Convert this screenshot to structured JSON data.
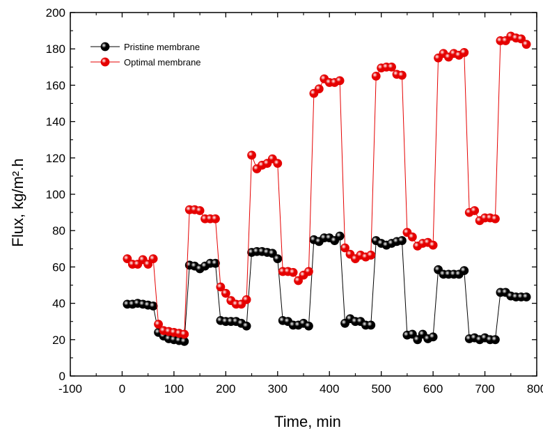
{
  "chart_data": {
    "type": "line",
    "xlabel": "Time, min",
    "ylabel": "Flux, kg/m².h",
    "xlim": [
      -100,
      800
    ],
    "ylim": [
      0,
      200
    ],
    "xticks": [
      -100,
      0,
      100,
      200,
      300,
      400,
      500,
      600,
      700,
      800
    ],
    "yticks": [
      0,
      20,
      40,
      60,
      80,
      100,
      120,
      140,
      160,
      180,
      200
    ],
    "grid": false,
    "legend_position": "top-left",
    "series": [
      {
        "name": "Pristine membrane",
        "color": "#000000",
        "marker": "circle",
        "x": [
          10,
          20,
          30,
          40,
          50,
          60,
          70,
          80,
          90,
          100,
          110,
          120,
          130,
          140,
          150,
          160,
          170,
          180,
          190,
          200,
          210,
          220,
          230,
          240,
          250,
          260,
          270,
          280,
          290,
          300,
          310,
          320,
          330,
          340,
          350,
          360,
          370,
          380,
          390,
          400,
          410,
          420,
          430,
          440,
          450,
          460,
          470,
          480,
          490,
          500,
          510,
          520,
          530,
          540,
          550,
          560,
          570,
          580,
          590,
          600,
          610,
          620,
          630,
          640,
          650,
          660,
          670,
          680,
          690,
          700,
          710,
          720,
          730,
          740,
          750,
          760,
          770,
          780
        ],
        "y": [
          39.5,
          39.5,
          40,
          39.5,
          39,
          38.5,
          24,
          22,
          20.5,
          20,
          19.5,
          19,
          61,
          60.5,
          59,
          60.5,
          62,
          62,
          30.5,
          30,
          30,
          30,
          29,
          27.5,
          68,
          68.5,
          68.5,
          68,
          67.5,
          64.5,
          30.5,
          30,
          28,
          28,
          29,
          27.5,
          75,
          74,
          76,
          76,
          74.5,
          77,
          29,
          31.5,
          30,
          30,
          28,
          28,
          74.5,
          73,
          72,
          73,
          74,
          74.5,
          22.5,
          23,
          20,
          23,
          20.5,
          21.5,
          58.5,
          56,
          56,
          56,
          56,
          58,
          20.5,
          21,
          20,
          21,
          20,
          20,
          46,
          46,
          44,
          43.5,
          43.5,
          43.5
        ]
      },
      {
        "name": "Optimal membrane",
        "color": "#e50000",
        "marker": "circle",
        "x": [
          10,
          20,
          30,
          40,
          50,
          60,
          70,
          80,
          90,
          100,
          110,
          120,
          130,
          140,
          150,
          160,
          170,
          180,
          190,
          200,
          210,
          220,
          230,
          240,
          250,
          260,
          270,
          280,
          290,
          300,
          310,
          320,
          330,
          340,
          350,
          360,
          370,
          380,
          390,
          400,
          410,
          420,
          430,
          440,
          450,
          460,
          470,
          480,
          490,
          500,
          510,
          520,
          530,
          540,
          550,
          560,
          570,
          580,
          590,
          600,
          610,
          620,
          630,
          640,
          650,
          660,
          670,
          680,
          690,
          700,
          710,
          720,
          730,
          740,
          750,
          760,
          770,
          780
        ],
        "y": [
          64.5,
          61.5,
          61.5,
          64,
          61.5,
          64.5,
          28.5,
          25,
          24.5,
          24,
          23.5,
          23,
          91.5,
          91.5,
          91,
          86.5,
          86.5,
          86.5,
          49,
          45.5,
          41.5,
          39.5,
          39.5,
          42,
          121.5,
          114,
          116,
          117,
          119.5,
          117,
          57.5,
          57.5,
          57,
          52.5,
          55.5,
          57.5,
          155.5,
          158,
          163.5,
          161.5,
          161.5,
          162.5,
          70.5,
          67,
          64.5,
          66.5,
          65.5,
          66.5,
          165,
          169.5,
          170,
          170,
          166,
          165.5,
          79,
          76.5,
          71.5,
          73,
          73.5,
          72,
          175,
          177.5,
          175.5,
          177.5,
          176.5,
          178,
          90,
          91,
          85.5,
          87,
          87,
          86.5,
          184.5,
          184.5,
          187,
          186,
          185.5,
          182.5
        ]
      }
    ]
  }
}
